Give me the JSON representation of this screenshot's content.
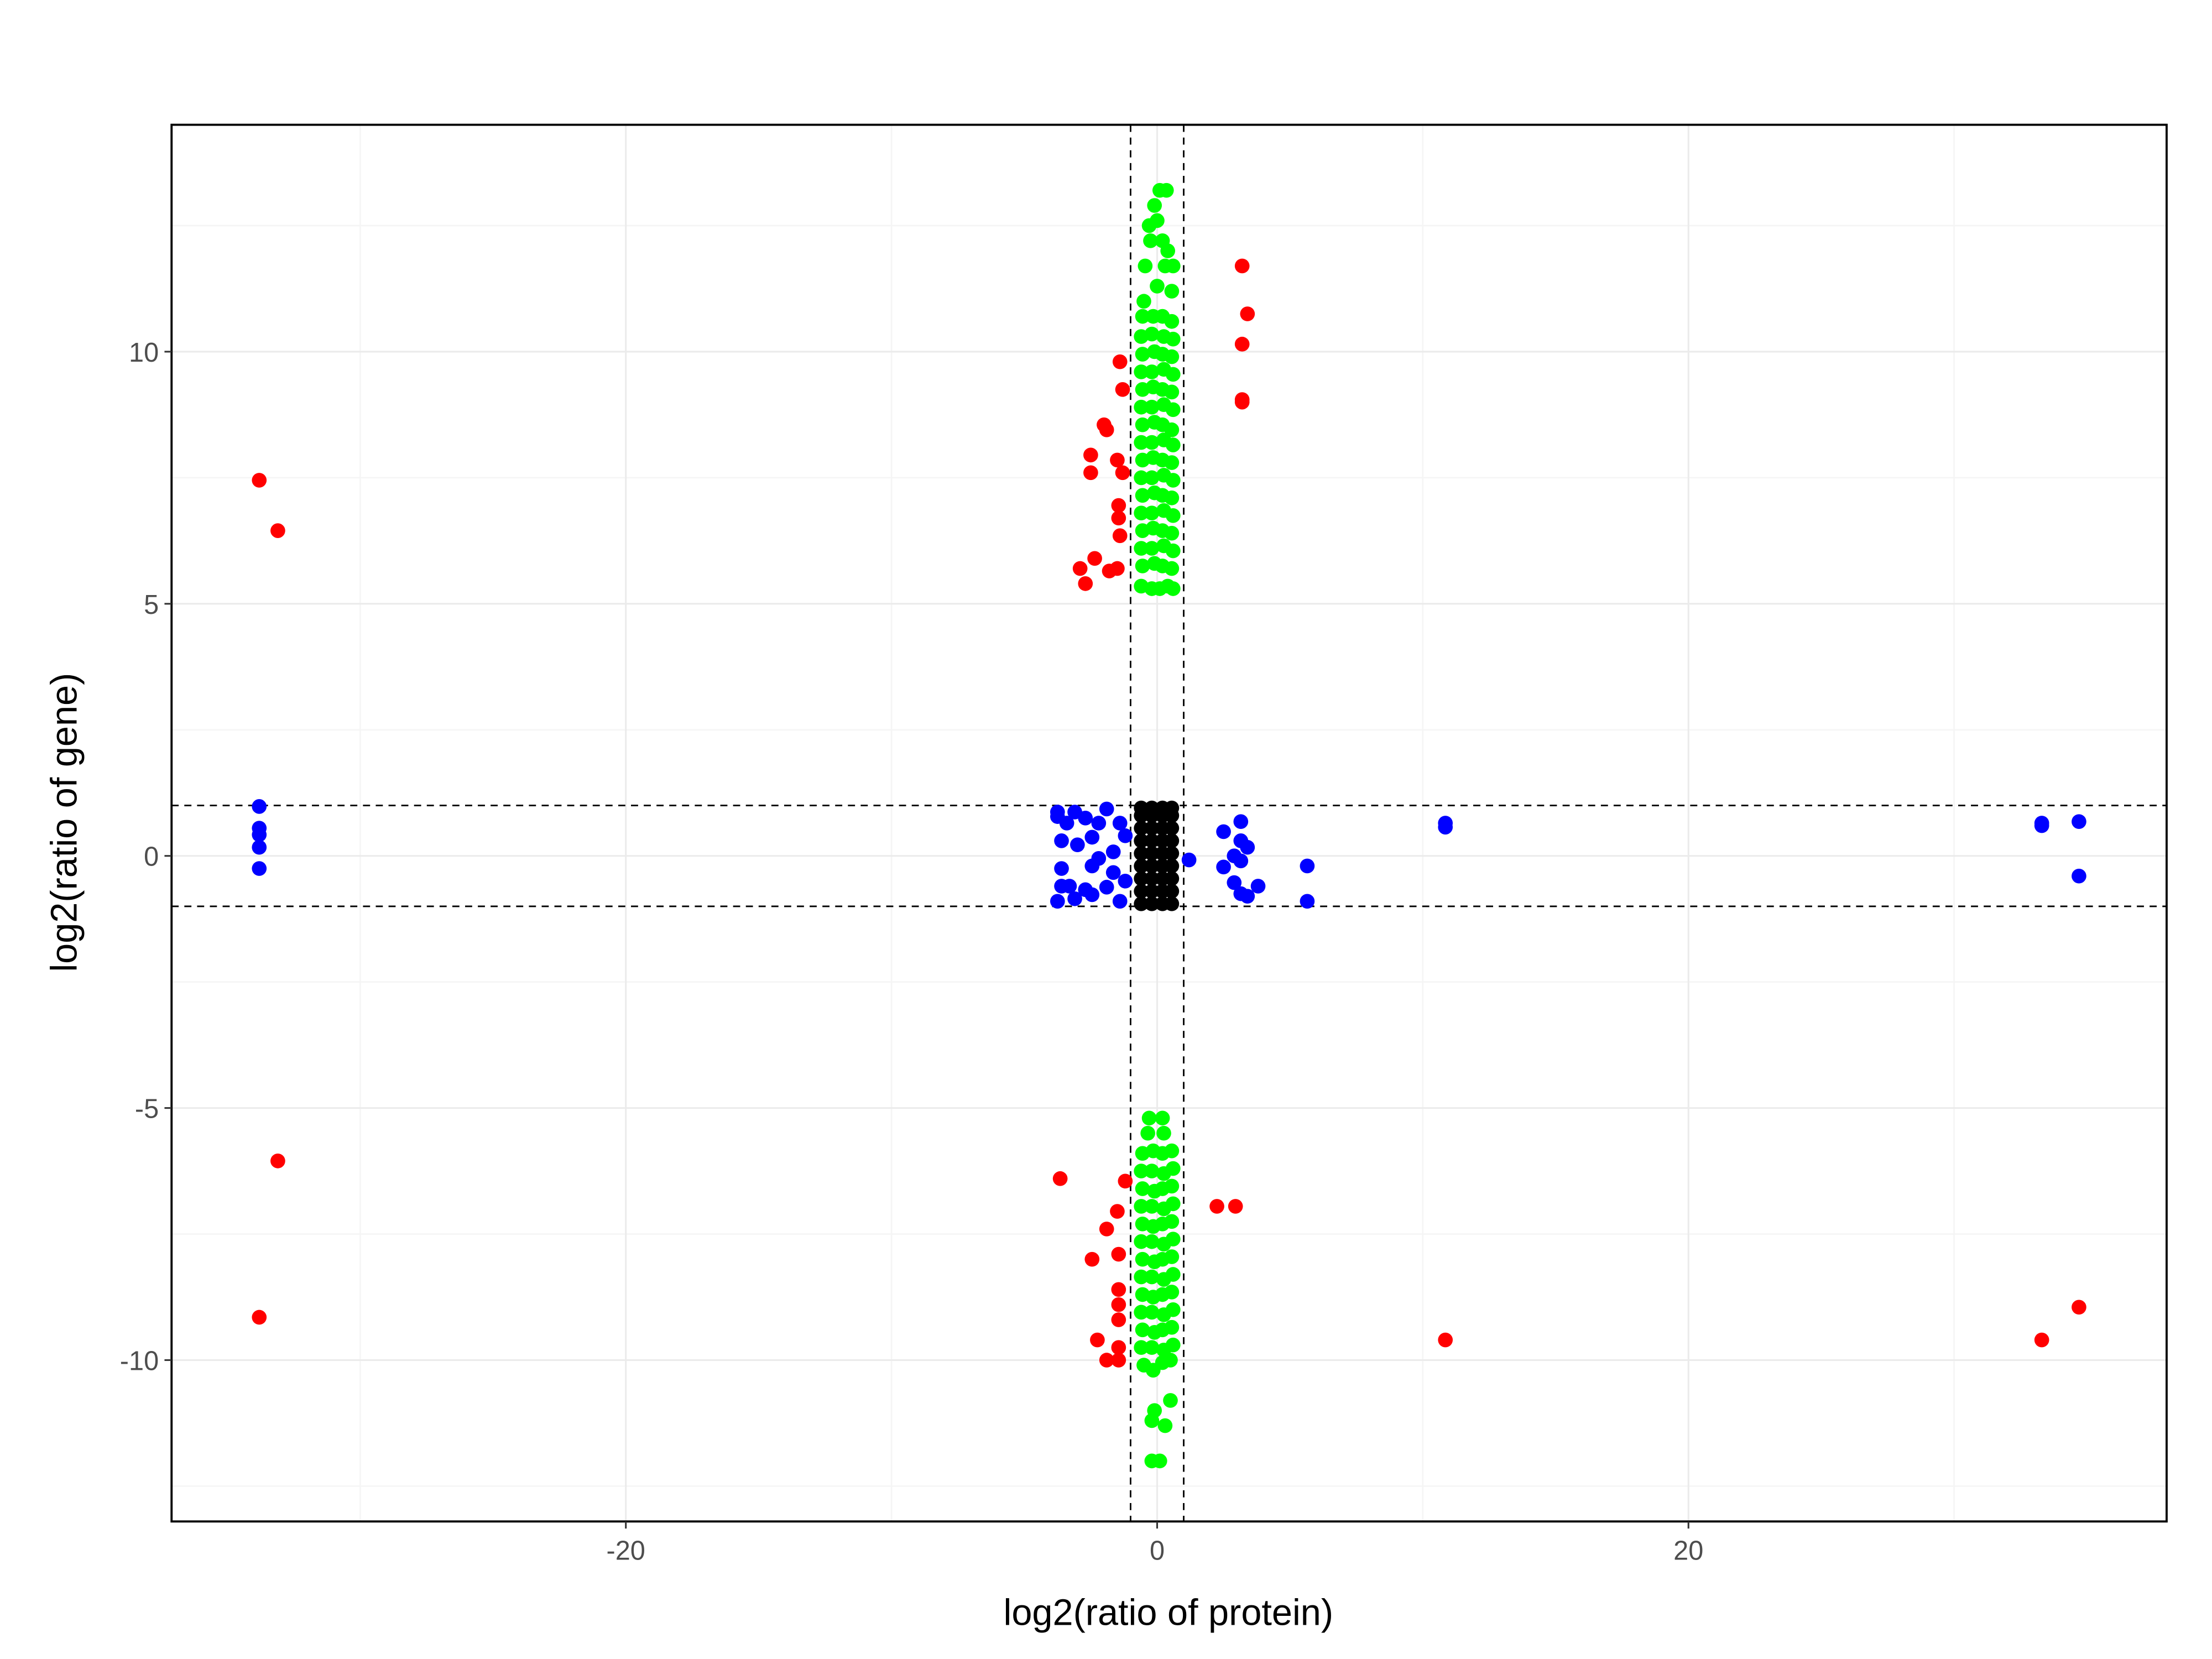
{
  "chart_data": {
    "type": "scatter",
    "title": "",
    "xlabel": "log2(ratio of protein)",
    "ylabel": "log2(ratio of gene)",
    "xlim": [
      -37.1,
      38.0
    ],
    "ylim": [
      -13.2,
      14.5
    ],
    "x_ticks": [
      -20,
      0,
      20
    ],
    "x_tick_labels": [
      "-20",
      "0",
      "20"
    ],
    "y_ticks": [
      -10,
      -5,
      0,
      5,
      10
    ],
    "y_tick_labels": [
      "-10",
      "-5",
      "0",
      "5",
      "10"
    ],
    "grid": true,
    "legend": "none",
    "reference_lines": {
      "vertical": [
        -1,
        1
      ],
      "horizontal": [
        -1,
        1
      ],
      "style": "dashed"
    },
    "colors": {
      "red": "#ff0000",
      "blue": "#0000ff",
      "green": "#00ff00",
      "black": "#000000"
    },
    "groups": [
      {
        "color": "red",
        "points": [
          [
            3.2,
            11.7
          ],
          [
            3.4,
            10.75
          ],
          [
            3.2,
            10.15
          ],
          [
            3.2,
            9.0
          ],
          [
            3.2,
            9.05
          ],
          [
            -1.4,
            9.8
          ],
          [
            -1.3,
            9.25
          ],
          [
            -2.0,
            8.55
          ],
          [
            -1.9,
            8.45
          ],
          [
            -2.5,
            7.95
          ],
          [
            -2.5,
            7.6
          ],
          [
            -1.5,
            7.85
          ],
          [
            -1.3,
            7.6
          ],
          [
            -1.45,
            6.95
          ],
          [
            -1.45,
            6.7
          ],
          [
            -1.4,
            6.35
          ],
          [
            -2.9,
            5.7
          ],
          [
            -2.7,
            5.4
          ],
          [
            -2.35,
            5.9
          ],
          [
            -1.8,
            5.65
          ],
          [
            -1.5,
            5.7
          ],
          [
            -33.8,
            7.45
          ],
          [
            -33.1,
            6.45
          ],
          [
            -33.1,
            -6.05
          ],
          [
            -33.8,
            -9.15
          ],
          [
            10.85,
            -9.6
          ],
          [
            33.3,
            -9.6
          ],
          [
            34.7,
            -8.95
          ],
          [
            -3.65,
            -6.4
          ],
          [
            -1.2,
            -6.45
          ],
          [
            2.25,
            -6.95
          ],
          [
            2.95,
            -6.95
          ],
          [
            -1.5,
            -7.05
          ],
          [
            -1.9,
            -7.4
          ],
          [
            -1.45,
            -7.9
          ],
          [
            -2.45,
            -8.0
          ],
          [
            -1.45,
            -8.6
          ],
          [
            -1.45,
            -8.9
          ],
          [
            -1.45,
            -9.2
          ],
          [
            -2.25,
            -9.6
          ],
          [
            -1.45,
            -9.75
          ],
          [
            -1.9,
            -10.0
          ],
          [
            -1.45,
            -10.0
          ]
        ]
      },
      {
        "color": "blue",
        "points": [
          [
            -33.8,
            0.98
          ],
          [
            -33.8,
            0.55
          ],
          [
            -33.8,
            0.42
          ],
          [
            -33.8,
            0.17
          ],
          [
            -33.8,
            -0.25
          ],
          [
            10.85,
            0.65
          ],
          [
            10.85,
            0.57
          ],
          [
            33.3,
            0.65
          ],
          [
            33.3,
            0.6
          ],
          [
            34.7,
            0.68
          ],
          [
            34.7,
            -0.4
          ],
          [
            5.65,
            -0.2
          ],
          [
            5.65,
            -0.9
          ],
          [
            2.5,
            0.48
          ],
          [
            3.15,
            0.68
          ],
          [
            3.15,
            0.3
          ],
          [
            3.4,
            0.17
          ],
          [
            2.9,
            0.0
          ],
          [
            3.15,
            -0.1
          ],
          [
            2.5,
            -0.22
          ],
          [
            2.9,
            -0.53
          ],
          [
            3.15,
            -0.75
          ],
          [
            3.4,
            -0.8
          ],
          [
            3.8,
            -0.6
          ],
          [
            1.2,
            -0.08
          ],
          [
            -3.75,
            0.87
          ],
          [
            -3.75,
            0.78
          ],
          [
            -3.1,
            0.87
          ],
          [
            -2.7,
            0.75
          ],
          [
            -3.4,
            0.65
          ],
          [
            -3.6,
            0.3
          ],
          [
            -3.0,
            0.22
          ],
          [
            -2.45,
            0.37
          ],
          [
            -1.9,
            0.93
          ],
          [
            -2.2,
            0.65
          ],
          [
            -3.6,
            -0.25
          ],
          [
            -3.6,
            -0.6
          ],
          [
            -3.3,
            -0.6
          ],
          [
            -2.7,
            -0.67
          ],
          [
            -3.75,
            -0.9
          ],
          [
            -3.1,
            -0.85
          ],
          [
            -2.45,
            -0.77
          ],
          [
            -1.9,
            -0.62
          ],
          [
            -1.65,
            0.08
          ],
          [
            -2.2,
            -0.05
          ],
          [
            -1.65,
            -0.33
          ],
          [
            -1.4,
            0.65
          ],
          [
            -1.4,
            -0.9
          ],
          [
            -2.45,
            -0.2
          ],
          [
            -1.2,
            0.4
          ],
          [
            -1.2,
            -0.5
          ]
        ]
      },
      {
        "color": "green",
        "points": [
          [
            -0.3,
            12.5
          ],
          [
            0.1,
            13.2
          ],
          [
            0.35,
            13.2
          ],
          [
            -0.1,
            12.9
          ],
          [
            0.0,
            12.6
          ],
          [
            -0.25,
            12.2
          ],
          [
            0.2,
            12.2
          ],
          [
            0.4,
            12.0
          ],
          [
            -0.45,
            11.7
          ],
          [
            0.6,
            11.7
          ],
          [
            0.3,
            11.7
          ],
          [
            0.55,
            11.2
          ],
          [
            -0.5,
            11.0
          ],
          [
            0.0,
            11.3
          ],
          [
            -0.55,
            10.7
          ],
          [
            -0.15,
            10.7
          ],
          [
            0.2,
            10.7
          ],
          [
            0.55,
            10.6
          ],
          [
            -0.6,
            10.3
          ],
          [
            -0.2,
            10.35
          ],
          [
            0.25,
            10.3
          ],
          [
            0.6,
            10.25
          ],
          [
            -0.55,
            9.95
          ],
          [
            -0.1,
            10.0
          ],
          [
            0.2,
            9.95
          ],
          [
            0.55,
            9.9
          ],
          [
            -0.6,
            9.6
          ],
          [
            -0.2,
            9.6
          ],
          [
            0.25,
            9.65
          ],
          [
            0.6,
            9.55
          ],
          [
            -0.55,
            9.25
          ],
          [
            -0.15,
            9.3
          ],
          [
            0.2,
            9.25
          ],
          [
            0.55,
            9.2
          ],
          [
            -0.6,
            8.9
          ],
          [
            -0.2,
            8.9
          ],
          [
            0.25,
            8.95
          ],
          [
            0.6,
            8.85
          ],
          [
            -0.55,
            8.55
          ],
          [
            -0.1,
            8.6
          ],
          [
            0.2,
            8.55
          ],
          [
            0.55,
            8.45
          ],
          [
            -0.6,
            8.2
          ],
          [
            -0.2,
            8.2
          ],
          [
            0.25,
            8.25
          ],
          [
            0.6,
            8.15
          ],
          [
            -0.55,
            7.85
          ],
          [
            -0.15,
            7.9
          ],
          [
            0.2,
            7.85
          ],
          [
            0.55,
            7.8
          ],
          [
            -0.6,
            7.5
          ],
          [
            -0.2,
            7.5
          ],
          [
            0.25,
            7.55
          ],
          [
            0.6,
            7.45
          ],
          [
            -0.55,
            7.15
          ],
          [
            -0.1,
            7.2
          ],
          [
            0.2,
            7.15
          ],
          [
            0.55,
            7.1
          ],
          [
            -0.6,
            6.8
          ],
          [
            -0.2,
            6.8
          ],
          [
            0.25,
            6.85
          ],
          [
            0.6,
            6.75
          ],
          [
            -0.55,
            6.45
          ],
          [
            -0.15,
            6.5
          ],
          [
            0.2,
            6.45
          ],
          [
            0.55,
            6.4
          ],
          [
            -0.6,
            6.1
          ],
          [
            -0.2,
            6.1
          ],
          [
            0.25,
            6.15
          ],
          [
            0.6,
            6.05
          ],
          [
            -0.55,
            5.75
          ],
          [
            -0.1,
            5.8
          ],
          [
            0.2,
            5.75
          ],
          [
            0.55,
            5.7
          ],
          [
            -0.6,
            5.35
          ],
          [
            -0.2,
            5.3
          ],
          [
            0.1,
            5.3
          ],
          [
            0.4,
            5.35
          ],
          [
            0.6,
            5.3
          ],
          [
            -0.3,
            -5.2
          ],
          [
            0.2,
            -5.2
          ],
          [
            -0.35,
            -5.5
          ],
          [
            0.25,
            -5.5
          ],
          [
            -0.55,
            -5.9
          ],
          [
            -0.15,
            -5.85
          ],
          [
            0.2,
            -5.9
          ],
          [
            0.55,
            -5.85
          ],
          [
            -0.6,
            -6.25
          ],
          [
            -0.2,
            -6.25
          ],
          [
            0.25,
            -6.3
          ],
          [
            0.6,
            -6.2
          ],
          [
            -0.55,
            -6.6
          ],
          [
            -0.1,
            -6.65
          ],
          [
            0.2,
            -6.6
          ],
          [
            0.55,
            -6.55
          ],
          [
            -0.6,
            -6.95
          ],
          [
            -0.2,
            -6.95
          ],
          [
            0.25,
            -7.0
          ],
          [
            0.6,
            -6.9
          ],
          [
            -0.55,
            -7.3
          ],
          [
            -0.15,
            -7.35
          ],
          [
            0.2,
            -7.3
          ],
          [
            0.55,
            -7.25
          ],
          [
            -0.6,
            -7.65
          ],
          [
            -0.2,
            -7.65
          ],
          [
            0.25,
            -7.7
          ],
          [
            0.6,
            -7.6
          ],
          [
            -0.55,
            -8.0
          ],
          [
            -0.1,
            -8.05
          ],
          [
            0.2,
            -8.0
          ],
          [
            0.55,
            -7.95
          ],
          [
            -0.6,
            -8.35
          ],
          [
            -0.2,
            -8.35
          ],
          [
            0.25,
            -8.4
          ],
          [
            0.6,
            -8.3
          ],
          [
            -0.55,
            -8.7
          ],
          [
            -0.15,
            -8.75
          ],
          [
            0.2,
            -8.7
          ],
          [
            0.55,
            -8.65
          ],
          [
            -0.6,
            -9.05
          ],
          [
            -0.2,
            -9.05
          ],
          [
            0.25,
            -9.1
          ],
          [
            0.6,
            -9.0
          ],
          [
            -0.55,
            -9.4
          ],
          [
            -0.1,
            -9.45
          ],
          [
            0.2,
            -9.4
          ],
          [
            0.55,
            -9.35
          ],
          [
            -0.6,
            -9.75
          ],
          [
            -0.2,
            -9.75
          ],
          [
            0.25,
            -9.8
          ],
          [
            0.6,
            -9.7
          ],
          [
            -0.5,
            -10.1
          ],
          [
            -0.15,
            -10.2
          ],
          [
            0.2,
            -10.05
          ],
          [
            0.5,
            -10.0
          ],
          [
            -0.1,
            -11.0
          ],
          [
            0.5,
            -10.8
          ],
          [
            -0.2,
            -11.2
          ],
          [
            0.3,
            -11.3
          ],
          [
            -0.2,
            -12.0
          ],
          [
            0.1,
            -12.0
          ]
        ]
      },
      {
        "color": "black",
        "points": [
          [
            -0.6,
            -0.95
          ],
          [
            -0.2,
            -0.95
          ],
          [
            0.2,
            -0.95
          ],
          [
            0.55,
            -0.95
          ],
          [
            -0.6,
            -0.7
          ],
          [
            -0.2,
            -0.7
          ],
          [
            0.2,
            -0.7
          ],
          [
            0.55,
            -0.7
          ],
          [
            -0.6,
            -0.45
          ],
          [
            -0.2,
            -0.45
          ],
          [
            0.2,
            -0.45
          ],
          [
            0.55,
            -0.45
          ],
          [
            -0.6,
            -0.2
          ],
          [
            -0.2,
            -0.2
          ],
          [
            0.2,
            -0.2
          ],
          [
            0.55,
            -0.2
          ],
          [
            -0.6,
            0.05
          ],
          [
            -0.2,
            0.05
          ],
          [
            0.2,
            0.05
          ],
          [
            0.55,
            0.05
          ],
          [
            -0.6,
            0.3
          ],
          [
            -0.2,
            0.3
          ],
          [
            0.2,
            0.3
          ],
          [
            0.55,
            0.3
          ],
          [
            -0.6,
            0.55
          ],
          [
            -0.2,
            0.55
          ],
          [
            0.2,
            0.55
          ],
          [
            0.55,
            0.55
          ],
          [
            -0.6,
            0.8
          ],
          [
            -0.2,
            0.8
          ],
          [
            0.2,
            0.8
          ],
          [
            0.55,
            0.8
          ],
          [
            -0.6,
            0.95
          ],
          [
            -0.2,
            0.95
          ],
          [
            0.2,
            0.95
          ],
          [
            0.55,
            0.95
          ]
        ]
      }
    ]
  }
}
